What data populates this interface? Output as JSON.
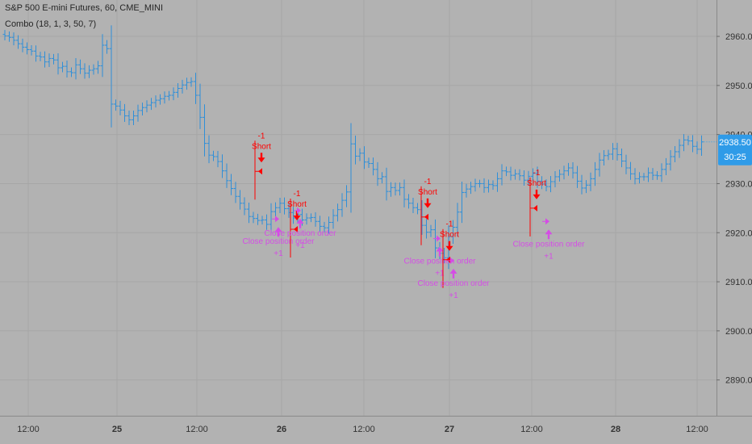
{
  "header": {
    "symbol_title": "S&P 500 E-mini Futures, 60, CME_MINI",
    "indicator": "Combo (18, 1, 3, 50, 7)"
  },
  "price_scale": {
    "last_price": "2938.50",
    "countdown": "30:25"
  },
  "colors": {
    "background": "#b2b2b2",
    "grid": "#a6a6a6",
    "bars": "#2f8fd8",
    "short": "#ff0000",
    "close": "#d54ce6",
    "price_tag": "#2f9be8"
  },
  "chart_data": {
    "type": "ohlc",
    "title": "S&P 500 E-mini Futures, 60, CME_MINI",
    "ylim": [
      2881,
      2967
    ],
    "ytick_labels": [
      "2890.00",
      "2900.00",
      "2910.00",
      "2920.00",
      "2930.00",
      "2940.00",
      "2950.00",
      "2960.00"
    ],
    "xtick_labels": [
      "12:00",
      "25",
      "12:00",
      "26",
      "12:00",
      "27",
      "12:00",
      "28",
      "12:00"
    ],
    "grid": true,
    "closes": [
      2960.1,
      2959.8,
      2959.2,
      2958.5,
      2957.8,
      2957.3,
      2957.0,
      2956.0,
      2955.8,
      2954.8,
      2955.5,
      2955.2,
      2953.6,
      2953.9,
      2952.8,
      2952.6,
      2954.2,
      2953.4,
      2952.5,
      2953.1,
      2953.4,
      2954.0,
      2958.2,
      2957.5,
      2946.2,
      2945.8,
      2945.0,
      2943.8,
      2943.0,
      2943.8,
      2944.9,
      2945.5,
      2946.0,
      2946.5,
      2947.0,
      2947.3,
      2947.8,
      2948.0,
      2948.6,
      2949.4,
      2950.1,
      2950.6,
      2950.8,
      2948.0,
      2943.5,
      2938.2,
      2935.8,
      2935.5,
      2934.5,
      2932.6,
      2930.6,
      2929.0,
      2927.4,
      2926.0,
      2924.8,
      2923.3,
      2922.9,
      2922.5,
      2922.6,
      2921.7,
      2924.3,
      2925.1,
      2926.0,
      2924.9,
      2924.1,
      2923.0,
      2923.7,
      2922.6,
      2923.0,
      2923.1,
      2922.3,
      2921.3,
      2921.0,
      2922.1,
      2923.5,
      2924.7,
      2926.6,
      2928.3,
      2938.1,
      2935.6,
      2936.2,
      2934.4,
      2934.1,
      2932.9,
      2931.0,
      2931.4,
      2928.4,
      2929.2,
      2928.6,
      2929.2,
      2926.8,
      2926.0,
      2925.1,
      2924.7,
      2921.5,
      2920.1,
      2920.6,
      2916.9,
      2915.8,
      2914.9,
      2919.2,
      2921.1,
      2924.2,
      2928.2,
      2928.9,
      2929.4,
      2930.0,
      2930.0,
      2929.2,
      2929.8,
      2929.6,
      2931.0,
      2932.6,
      2932.4,
      2931.7,
      2932.0,
      2931.6,
      2930.7,
      2931.5,
      2932.1,
      2930.5,
      2929.9,
      2929.4,
      2930.4,
      2931.4,
      2931.9,
      2932.6,
      2933.2,
      2932.2,
      2930.5,
      2929.1,
      2929.7,
      2931.0,
      2932.9,
      2934.8,
      2935.7,
      2936.0,
      2937.1,
      2935.9,
      2934.6,
      2933.2,
      2932.0,
      2931.0,
      2931.4,
      2931.4,
      2932.2,
      2931.7,
      2931.6,
      2932.9,
      2934.0,
      2935.5,
      2936.5,
      2937.8,
      2938.9,
      2938.7,
      2937.6,
      2937.0,
      2938.5
    ],
    "orders": [
      {
        "type": "short",
        "signal_label": "Short",
        "qty_label": "-1",
        "entry_price": 2932.5
      },
      {
        "type": "close",
        "signal_label": "Close position order",
        "qty_label": "+1",
        "entry_price": 2922.8
      },
      {
        "type": "short",
        "signal_label": "Short",
        "qty_label": "-1",
        "entry_price": 2920.7
      },
      {
        "type": "close",
        "signal_label": "Close position order",
        "qty_label": "+1",
        "entry_price": 2924.5
      },
      {
        "type": "short",
        "signal_label": "Short",
        "qty_label": "-1",
        "entry_price": 2923.2
      },
      {
        "type": "close",
        "signal_label": "Close position order",
        "qty_label": "+1",
        "entry_price": 2918.8
      },
      {
        "type": "short",
        "signal_label": "Short",
        "qty_label": "-1",
        "entry_price": 2914.5
      },
      {
        "type": "close",
        "signal_label": "Close position order",
        "qty_label": "+1",
        "entry_price": 2914.3
      },
      {
        "type": "short",
        "signal_label": "Short",
        "qty_label": "-1",
        "entry_price": 2925.0
      },
      {
        "type": "close",
        "signal_label": "Close position order",
        "qty_label": "+1",
        "entry_price": 2922.3
      }
    ]
  }
}
